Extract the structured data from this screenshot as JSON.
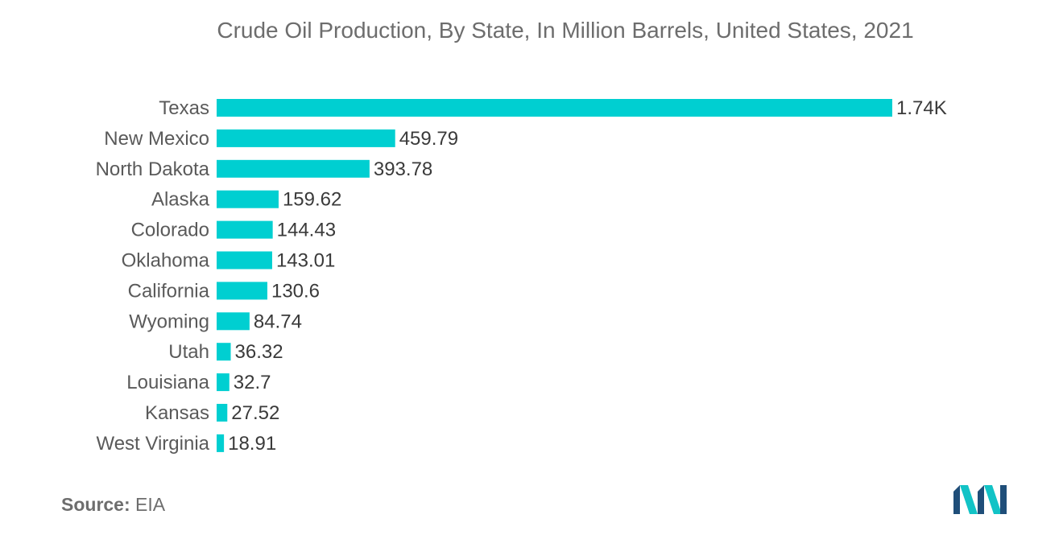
{
  "chart_data": {
    "type": "bar",
    "orientation": "horizontal",
    "title": "Crude Oil Production, By State, In Million Barrels, United States, 2021",
    "categories": [
      "Texas",
      "New Mexico",
      "North Dakota",
      "Alaska",
      "Colorado",
      "Oklahoma",
      "California",
      "Wyoming",
      "Utah",
      "Louisiana",
      "Kansas",
      "West Virginia"
    ],
    "values": [
      1740,
      459.79,
      393.78,
      159.62,
      144.43,
      143.01,
      130.6,
      84.74,
      36.32,
      32.7,
      27.52,
      18.91
    ],
    "value_labels": [
      "1.74K",
      "459.79",
      "393.78",
      "159.62",
      "144.43",
      "143.01",
      "130.6",
      "84.74",
      "36.32",
      "32.7",
      "27.52",
      "18.91"
    ],
    "xlabel": "",
    "ylabel": "",
    "xlim": [
      0,
      1740
    ],
    "grid": false,
    "legend": "none",
    "bar_color": "#00cfd1"
  },
  "footer": {
    "source_label": "Source:",
    "source_value": "EIA"
  },
  "logo": {
    "icon": "mordor-intelligence-logo-icon",
    "colors": [
      "#1f4e79",
      "#12c3c6"
    ]
  }
}
